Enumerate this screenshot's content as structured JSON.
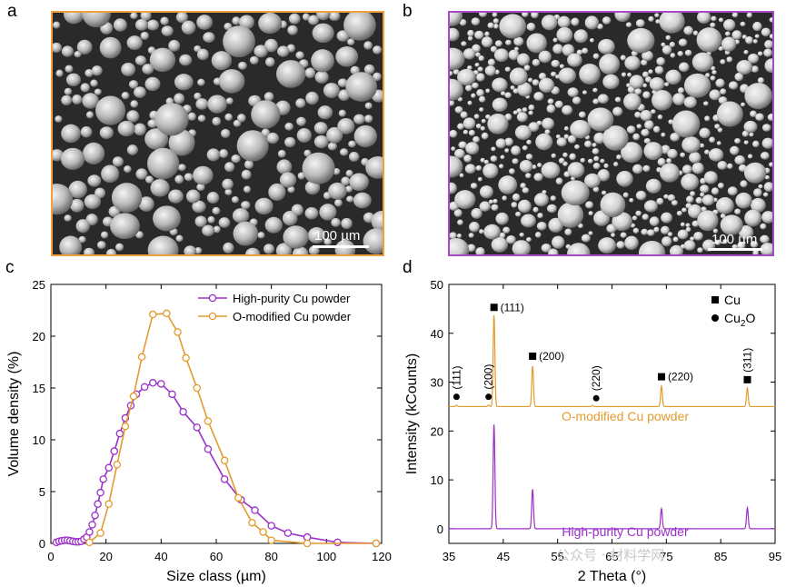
{
  "panels": {
    "a": {
      "letter": "a",
      "scale_label": "100 µm",
      "frame_color": "#f0a03c",
      "background": "#2a2a2a",
      "particle_color": "#b9b9b9"
    },
    "b": {
      "letter": "b",
      "scale_label": "100 µm",
      "frame_color": "#a64bc4",
      "background": "#2a2a2a",
      "particle_color": "#d0d0d0"
    },
    "c": {
      "letter": "c"
    },
    "d": {
      "letter": "d"
    }
  },
  "colors": {
    "purple": "#9b30c8",
    "orange": "#e39b2d"
  },
  "watermark": "公众号 · 材料学网",
  "chart_data": [
    {
      "id": "c",
      "type": "line",
      "xlabel": "Size class (µm)",
      "ylabel": "Volume density (%)",
      "xlim": [
        0,
        120
      ],
      "ylim": [
        0,
        25
      ],
      "xticks": [
        0,
        20,
        40,
        60,
        80,
        100,
        120
      ],
      "yticks": [
        0,
        5,
        10,
        15,
        20,
        25
      ],
      "grid": false,
      "legend_position": "top-right",
      "series": [
        {
          "name": "High-purity Cu powder",
          "color": "#9b30c8",
          "points": [
            [
              2,
              0.1
            ],
            [
              3,
              0.2
            ],
            [
              4,
              0.25
            ],
            [
              5,
              0.3
            ],
            [
              6,
              0.3
            ],
            [
              7,
              0.25
            ],
            [
              8,
              0.2
            ],
            [
              9,
              0.15
            ],
            [
              10,
              0.15
            ],
            [
              11,
              0.2
            ],
            [
              12,
              0.4
            ],
            [
              13,
              0.6
            ],
            [
              14,
              1.1
            ],
            [
              15,
              1.8
            ],
            [
              16,
              2.7
            ],
            [
              17,
              3.8
            ],
            [
              18,
              4.9
            ],
            [
              19,
              6.2
            ],
            [
              21,
              7.3
            ],
            [
              23,
              8.9
            ],
            [
              25,
              10.6
            ],
            [
              27,
              12.1
            ],
            [
              29,
              13.3
            ],
            [
              31,
              14.4
            ],
            [
              34,
              15.1
            ],
            [
              37,
              15.5
            ],
            [
              40,
              15.4
            ],
            [
              44,
              14.4
            ],
            [
              48,
              12.7
            ],
            [
              53,
              11.2
            ],
            [
              57,
              9.1
            ],
            [
              63,
              6.2
            ],
            [
              69,
              4.2
            ],
            [
              74,
              3.2
            ],
            [
              80,
              1.7
            ],
            [
              86,
              1.0
            ],
            [
              93,
              0.6
            ],
            [
              104,
              0.1
            ],
            [
              118,
              0.0
            ]
          ]
        },
        {
          "name": "O-modified Cu powder",
          "color": "#e39b2d",
          "points": [
            [
              14,
              0.1
            ],
            [
              18,
              1.0
            ],
            [
              21,
              3.8
            ],
            [
              24,
              7.6
            ],
            [
              27,
              11.3
            ],
            [
              30,
              14.2
            ],
            [
              33,
              18.0
            ],
            [
              37,
              22.1
            ],
            [
              42,
              22.2
            ],
            [
              46,
              20.4
            ],
            [
              49,
              17.9
            ],
            [
              53,
              15.0
            ],
            [
              57,
              11.8
            ],
            [
              63,
              8.0
            ],
            [
              68,
              4.4
            ],
            [
              73,
              2.0
            ],
            [
              77,
              1.1
            ],
            [
              80,
              0.3
            ],
            [
              93,
              0.0
            ],
            [
              118,
              0.0
            ]
          ]
        }
      ]
    },
    {
      "id": "d",
      "type": "line",
      "xlabel": "2 Theta (°)",
      "ylabel": "Intensity (kCounts)",
      "xlim": [
        35,
        95
      ],
      "ylim": [
        -3,
        50
      ],
      "xticks": [
        35,
        45,
        55,
        65,
        75,
        85,
        95
      ],
      "yticks": [
        0,
        10,
        20,
        30,
        40,
        50
      ],
      "grid": false,
      "legend_position": "top-right",
      "legend": [
        {
          "marker": "square",
          "name": "Cu"
        },
        {
          "marker": "circle",
          "name": "Cu2O"
        }
      ],
      "series": [
        {
          "name": "O-modified Cu powder",
          "color": "#e39b2d",
          "baseline": 25,
          "peaks": [
            [
              36.4,
              0.3
            ],
            [
              42.3,
              0.3
            ],
            [
              43.3,
              18.7
            ],
            [
              50.4,
              8.3
            ],
            [
              61.4,
              0.2
            ],
            [
              74.1,
              4.2
            ],
            [
              89.9,
              3.8
            ]
          ]
        },
        {
          "name": "High-purity Cu powder",
          "color": "#9b30c8",
          "baseline": 0,
          "peaks": [
            [
              43.3,
              21.3
            ],
            [
              50.4,
              8.1
            ],
            [
              74.1,
              4.1
            ],
            [
              89.9,
              4.3
            ]
          ]
        }
      ],
      "annotations": [
        {
          "marker": "circle",
          "x": 36.4,
          "y": 27.0,
          "text": "(111)",
          "rotated": true
        },
        {
          "marker": "circle",
          "x": 42.3,
          "y": 27.0,
          "text": "(200)",
          "rotated": true
        },
        {
          "marker": "square",
          "x": 43.3,
          "y": 45.3,
          "text": "(111)",
          "rotated": false
        },
        {
          "marker": "square",
          "x": 50.4,
          "y": 35.3,
          "text": "(200)",
          "rotated": false
        },
        {
          "marker": "circle",
          "x": 62.1,
          "y": 26.7,
          "text": "(220)",
          "rotated": true
        },
        {
          "marker": "square",
          "x": 74.1,
          "y": 31.1,
          "text": "(220)",
          "rotated": false
        },
        {
          "marker": "square",
          "x": 89.9,
          "y": 30.5,
          "text": "(311)",
          "rotated": true
        }
      ]
    }
  ]
}
